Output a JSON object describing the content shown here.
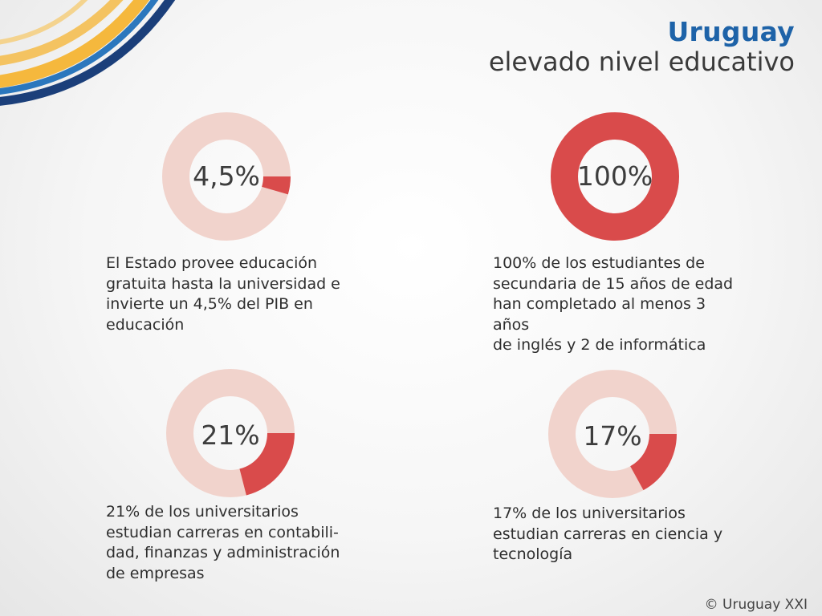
{
  "header": {
    "title": "Uruguay",
    "subtitle": "elevado nivel educativo"
  },
  "colors": {
    "accent": "#d94b4b",
    "track": "#f1d3cc",
    "brand_blue": "#1e63a8",
    "deco_yellow": "#f5b83d",
    "deco_navy": "#1b3f7a"
  },
  "chart_data": [
    {
      "type": "pie",
      "label": "4,5%",
      "values": [
        4.5,
        95.5
      ],
      "caption": "El Estado provee educación\ngratuita hasta la universidad e\ninvierte un 4,5% del PIB en\neducación"
    },
    {
      "type": "pie",
      "label": "100%",
      "values": [
        100,
        0
      ],
      "caption": "100% de los estudiantes de\nsecundaria de 15 años de edad\nhan completado al menos 3 años\nde inglés y 2 de informática"
    },
    {
      "type": "pie",
      "label": "21%",
      "values": [
        21,
        79
      ],
      "caption": "21% de los universitarios\nestudian carreras en contabili-\ndad, finanzas y administración\nde empresas"
    },
    {
      "type": "pie",
      "label": "17%",
      "values": [
        17,
        83
      ],
      "caption": "17% de los universitarios\nestudian carreras en ciencia y\ntecnología"
    }
  ],
  "footer": {
    "copyright": "© Uruguay XXI"
  }
}
